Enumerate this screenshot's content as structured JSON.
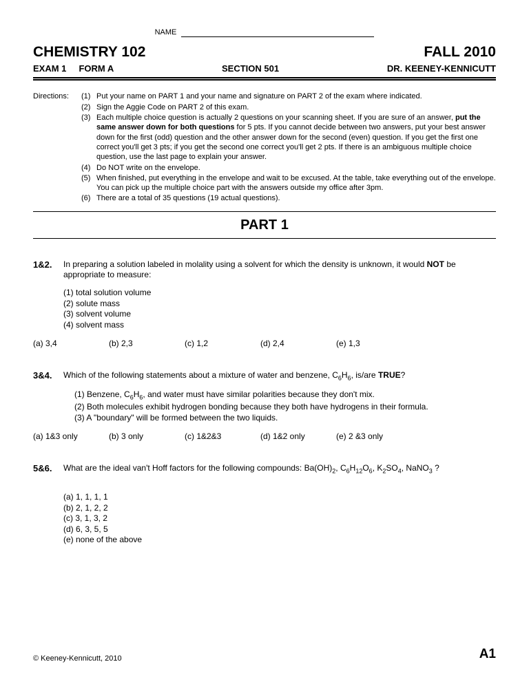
{
  "name_label": "NAME",
  "header": {
    "course": "CHEMISTRY 102",
    "term": "FALL 2010",
    "exam": "EXAM 1",
    "form": "FORM A",
    "section": "SECTION 501",
    "instructor": "DR. KEENEY-KENNICUTT"
  },
  "directions_label": "Directions:",
  "directions": [
    {
      "n": "(1)",
      "t": "Put your name on PART 1 and your name and signature on PART 2 of the exam where indicated."
    },
    {
      "n": "(2)",
      "t": "Sign the Aggie Code on PART 2 of this exam."
    },
    {
      "n": "(3)",
      "t": "Each multiple choice question is actually 2 questions on your scanning sheet.  If you are sure of an answer, <b>put the same answer down for both questions</b> for 5 pts.  If you cannot decide between two answers, put your best answer down for the first (odd) question and the other answer down for the second (even) question.  If you get the first one correct you'll get 3 pts; if you get the second one correct you'll get 2 pts.  If there is an ambiguous multiple choice question, use the last page to explain your answer."
    },
    {
      "n": "(4)",
      "t": "Do NOT write on the envelope."
    },
    {
      "n": "(5)",
      "t": "When finished, put everything in the envelope and wait to be excused.  At the table, take everything out of the envelope.  You can pick up the multiple choice part with the answers outside my office after 3pm."
    },
    {
      "n": "(6)",
      "t": "There are a total of 35 questions (19 actual questions)."
    }
  ],
  "part_title": "PART 1",
  "q1": {
    "num": "1&2.",
    "stem": "In preparing a solution labeled in molality using a solvent for which the density is unknown, it would <b>NOT</b> be appropriate to measure:",
    "items": [
      "(1) total solution volume",
      "(2) solute mass",
      "(3) solvent volume",
      "(4) solvent mass"
    ],
    "choices": [
      "(a)  3,4",
      "(b)  2,3",
      "(c)  1,2",
      "(d)  2,4",
      "(e)  1,3"
    ]
  },
  "q2": {
    "num": "3&4.",
    "stem": "Which of the following statements about a mixture of water and benzene, C<sub>6</sub>H<sub>6</sub>, is/are <b>TRUE</b>?",
    "items": [
      "(1)  Benzene, C<sub>6</sub>H<sub>6</sub>, and water must have similar polarities because they don't mix.",
      "(2)  Both molecules exhibit hydrogen bonding because they both have hydrogens in their formula.",
      "(3)  A \"boundary\" will be formed between the two liquids."
    ],
    "choices": [
      "(a)  1&3 only",
      "(b)  3 only",
      "(c)  1&2&3",
      "(d)  1&2 only",
      "(e)  2 &3 only"
    ]
  },
  "q3": {
    "num": "5&6.",
    "stem": "What are the ideal van't Hoff factors for the following compounds:   Ba(OH)<sub>2</sub>, C<sub>6</sub>H<sub>12</sub>O<sub>6</sub>, K<sub>2</sub>SO<sub>4</sub>, NaNO<sub>3</sub> ?",
    "choices": [
      "(a) 1, 1, 1, 1",
      "(b) 2, 1, 2, 2",
      "(c) 3, 1, 3, 2",
      "(d) 6, 3, 5, 5",
      "(e) none of the above"
    ]
  },
  "footer": {
    "copyright": "© Keeney-Kennicutt, 2010",
    "page": "A1"
  }
}
